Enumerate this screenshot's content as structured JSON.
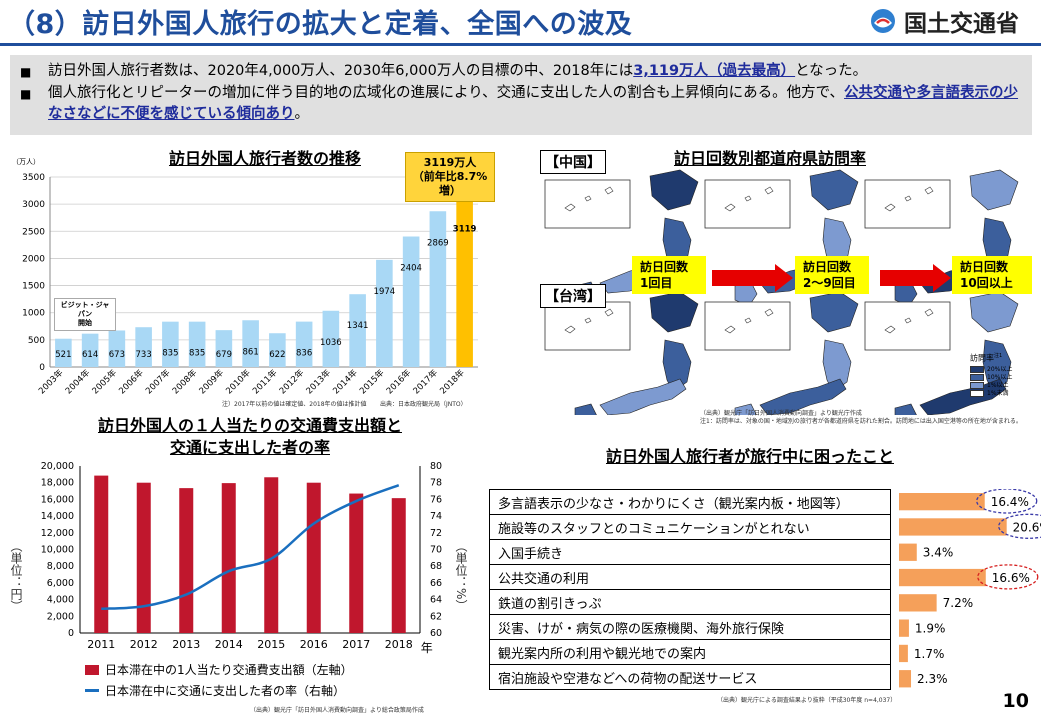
{
  "header": {
    "title": "（8）訪日外国人旅行の拡大と定着、全国への波及",
    "logo_text": "国土交通省"
  },
  "summary": {
    "bullet1_pre": "訪日外国人旅行者数は、2020年4,000万人、2030年6,000万人の目標の中、2018年には",
    "bullet1_hl": "3,119万人（過去最高）",
    "bullet1_post": "となった。",
    "bullet2_pre": "個人旅行化とリピーターの増加に伴う目的地の広域化の進展により、交通に支出した人の割合も上昇傾向にある。他方で、",
    "bullet2_hl": "公共交通や多言語表示の少なさなどに不便を感じている傾向あり",
    "bullet2_post": "。"
  },
  "chart_data": [
    {
      "type": "bar",
      "title": "訪日外国人旅行者数の推移",
      "ylabel": "（万人）",
      "ylim": [
        0,
        3500
      ],
      "yticks": [
        0,
        500,
        1000,
        1500,
        2000,
        2500,
        3000,
        3500
      ],
      "categories": [
        "2003年",
        "2004年",
        "2005年",
        "2006年",
        "2007年",
        "2008年",
        "2009年",
        "2010年",
        "2011年",
        "2012年",
        "2013年",
        "2014年",
        "2015年",
        "2016年",
        "2017年",
        "2018年"
      ],
      "values": [
        521,
        614,
        673,
        733,
        835,
        835,
        679,
        861,
        622,
        836,
        1036,
        1341,
        1974,
        2404,
        2869,
        3119
      ],
      "value_labels": [
        "521",
        "614",
        "673",
        "733",
        "835",
        "835",
        "679",
        "861",
        "622",
        "836",
        "1036",
        "1341",
        "1974",
        "2404",
        "2869",
        "3119"
      ],
      "colors": {
        "bar": "#a9d8f5",
        "highlight": "#ffc000",
        "grid": "#cccccc"
      },
      "callout": [
        "3119万人",
        "（前年比8.7%増）"
      ],
      "annotation": [
        "ビジット・ジャパン",
        "開始"
      ],
      "note": "注）2017年以前の値は確定値、2018年の値は推計値",
      "source": "出典：日本政府観光局（JNTO）"
    },
    {
      "type": "bar",
      "title": [
        "訪日外国人の１人当たりの交通費支出額と",
        "交通に支出した者の率"
      ],
      "categories": [
        "2011",
        "2012",
        "2013",
        "2014",
        "2015",
        "2016",
        "2017",
        "2018"
      ],
      "xunit": "年",
      "series": [
        {
          "name": "日本滞在中の1人当たり交通費支出額（左軸）",
          "axis": "left",
          "type": "bar",
          "color": "#c0172d",
          "values": [
            18850,
            18000,
            17350,
            17950,
            18650,
            18000,
            16700,
            16150
          ]
        },
        {
          "name": "日本滞在中に交通に支出した者の率（右軸）",
          "axis": "right",
          "type": "line",
          "color": "#1a6fbf",
          "values": [
            62.9,
            63.2,
            64.6,
            67.4,
            68.9,
            73.1,
            75.8,
            77.7
          ]
        }
      ],
      "ylim_left": [
        0,
        20000
      ],
      "yticks_left": [
        "0",
        "2,000",
        "4,000",
        "6,000",
        "8,000",
        "10,000",
        "12,000",
        "14,000",
        "16,000",
        "18,000",
        "20,000"
      ],
      "ylim_right": [
        60,
        80
      ],
      "yticks_right": [
        "60",
        "62",
        "64",
        "66",
        "68",
        "70",
        "72",
        "74",
        "76",
        "78",
        "80"
      ],
      "ylabel_left": "（単位：円）",
      "ylabel_right": "（単位：%）",
      "source": "（出典）観光庁「訪日外国人消費動向調査」より総合政策局作成"
    },
    {
      "type": "bar",
      "orientation": "horizontal",
      "title": "訪日外国人旅行者が旅行中に困ったこと",
      "categories": [
        "多言語表示の少なさ・わかりにくさ（観光案内板・地図等）",
        "施設等のスタッフとのコミュニケーションがとれない",
        "入国手続き",
        "公共交通の利用",
        "鉄道の割引きっぷ",
        "災害、けが・病気の際の医療機関、海外旅行保険",
        "観光案内所の利用や観光地での案内",
        "宿泊施設や空港などへの荷物の配送サービス"
      ],
      "values": [
        16.4,
        20.6,
        3.4,
        16.6,
        7.2,
        1.9,
        1.7,
        2.3
      ],
      "value_labels": [
        "16.4%",
        "20.6%",
        "3.4%",
        "16.6%",
        "7.2%",
        "1.9%",
        "1.7%",
        "2.3%"
      ],
      "colors": {
        "bar": "#f5a05a",
        "circle_blue": "#3a3aa8",
        "circle_red": "#d62020"
      },
      "source": "（出典）観光庁による調査結果より抜粋（平成30年度 n=4,037）"
    }
  ],
  "map_panel": {
    "title": "訪日回数別都道府県訪問率",
    "row_labels": [
      "【中国】",
      "【台湾】"
    ],
    "visit_labels": [
      [
        "訪日回数",
        "1回目"
      ],
      [
        "訪日回数",
        "2〜9回目"
      ],
      [
        "訪日回数",
        "10回以上"
      ]
    ],
    "legend_title": "訪問率",
    "legend_title_note": "注1",
    "legend_items": [
      "20%以上",
      "10%以上",
      "1%以上",
      "1%未満"
    ],
    "legend_colors": [
      "#1f3a6e",
      "#3c5f9c",
      "#7d9ad0",
      "#ffffff"
    ],
    "source": "（出典）観光庁「訪日外国人消費動向調査」より観光庁作成",
    "note": "注1：訪問率は、対象の国・地域別の旅行者が各都道府県を訪れた割合。訪問地には出入国空港等の所在地が含まれる。"
  },
  "page_number": "10"
}
